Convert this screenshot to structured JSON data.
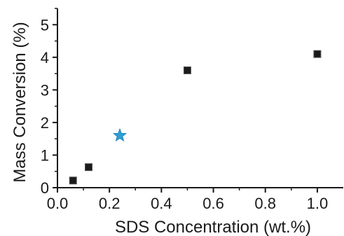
{
  "chart_data": {
    "type": "scatter",
    "title": "",
    "xlabel": "SDS Concentration (wt.%)",
    "ylabel": "Mass Conversion (%)",
    "xlim": [
      0.0,
      1.1
    ],
    "ylim": [
      0,
      5.5
    ],
    "x_ticks": [
      "0.0",
      "0.2",
      "0.4",
      "0.6",
      "0.8",
      "1.0"
    ],
    "x_tick_values": [
      0.0,
      0.2,
      0.4,
      0.6,
      0.8,
      1.0
    ],
    "y_ticks": [
      "0",
      "1",
      "2",
      "3",
      "4",
      "5"
    ],
    "y_tick_values": [
      0,
      1,
      2,
      3,
      4,
      5
    ],
    "grid": false,
    "legend": "none",
    "series": [
      {
        "marker": "square",
        "color": "#1a1a1a",
        "x": [
          0.06,
          0.12,
          0.5,
          1.0
        ],
        "y": [
          0.22,
          0.63,
          3.6,
          4.1
        ]
      },
      {
        "marker": "star",
        "color": "#2b9fd6",
        "x": [
          0.24
        ],
        "y": [
          1.6
        ]
      }
    ]
  }
}
